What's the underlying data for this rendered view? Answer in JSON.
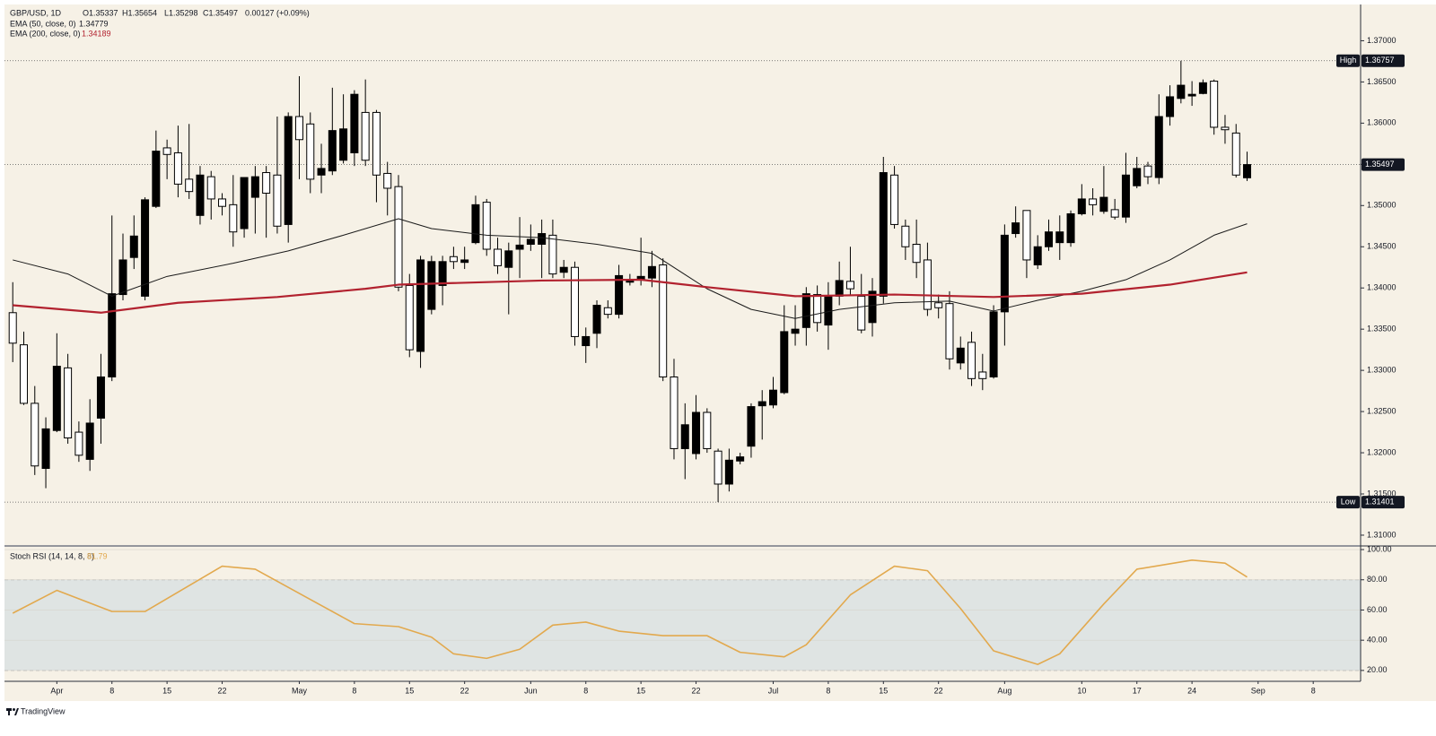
{
  "header": {
    "symbol": "GBP/USD, 1D",
    "open": "O1.35337",
    "high": "H1.35654",
    "low": "L1.35298",
    "close": "C1.35497",
    "change": "0.00127 (+0.09%)"
  },
  "brand": "TradingView",
  "chart_data": [
    {
      "type": "candlestick",
      "xlim": [
        -0.75,
        122.3
      ],
      "ylim": [
        1.3088,
        1.3744
      ],
      "grid": true,
      "up_color": "#000000",
      "down_color": "#ffffff",
      "yticks": [
        {
          "value": 1.31,
          "label": "1.31000"
        },
        {
          "value": 1.315,
          "label": "1.31500"
        },
        {
          "value": 1.32,
          "label": "1.32000"
        },
        {
          "value": 1.325,
          "label": "1.32500"
        },
        {
          "value": 1.33,
          "label": "1.33000"
        },
        {
          "value": 1.335,
          "label": "1.33500"
        },
        {
          "value": 1.34,
          "label": "1.34000"
        },
        {
          "value": 1.345,
          "label": "1.34500"
        },
        {
          "value": 1.35,
          "label": "1.35000"
        },
        {
          "value": 1.355,
          "label": "1.35500"
        },
        {
          "value": 1.36,
          "label": "1.36000"
        },
        {
          "value": 1.365,
          "label": "1.36500"
        },
        {
          "value": 1.37,
          "label": "1.37000"
        }
      ],
      "candles": {
        "open": [
          1.337,
          1.3331,
          1.326,
          1.3181,
          1.3227,
          1.3303,
          1.3225,
          1.3192,
          1.3242,
          1.3292,
          1.3392,
          1.3437,
          1.339,
          1.3499,
          1.357,
          1.3564,
          1.3532,
          1.3488,
          1.3535,
          1.3508,
          1.3501,
          1.3472,
          1.351,
          1.354,
          1.3537,
          1.3477,
          1.3608,
          1.3599,
          1.3537,
          1.3542,
          1.3555,
          1.3564,
          1.3613,
          1.3613,
          1.3539,
          1.3523,
          1.3403,
          1.3323,
          1.3374,
          1.3403,
          1.3438,
          1.3431,
          1.3455,
          1.3504,
          1.3447,
          1.3425,
          1.3447,
          1.3453,
          1.3453,
          1.3464,
          1.3419,
          1.3425,
          1.333,
          1.3345,
          1.3376,
          1.3368,
          1.3407,
          1.341,
          1.3412,
          1.3428,
          1.3292,
          1.3205,
          1.3199,
          1.3249,
          1.3202,
          1.3162,
          1.319,
          1.3208,
          1.3257,
          1.3258,
          1.3273,
          1.3345,
          1.3352,
          1.3392,
          1.3355,
          1.339,
          1.3408,
          1.339,
          1.3358,
          1.339,
          1.3537,
          1.3475,
          1.3453,
          1.3434,
          1.3382,
          1.3381,
          1.3309,
          1.3334,
          1.3298,
          1.3292,
          1.3371,
          1.3466,
          1.3494,
          1.3428,
          1.345,
          1.3455,
          1.3455,
          1.349,
          1.3508,
          1.3493,
          1.3495,
          1.3486,
          1.3524,
          1.3548,
          1.3534,
          1.3608,
          1.363,
          1.3633,
          1.3636,
          1.3651,
          1.3595,
          1.3588,
          1.35337
        ],
        "high": [
          1.3407,
          1.3347,
          1.3281,
          1.3243,
          1.3345,
          1.332,
          1.3238,
          1.3265,
          1.332,
          1.3488,
          1.3466,
          1.3488,
          1.351,
          1.3591,
          1.358,
          1.3597,
          1.3599,
          1.3548,
          1.3542,
          1.3515,
          1.3537,
          1.3534,
          1.3548,
          1.3548,
          1.3608,
          1.3613,
          1.3657,
          1.3613,
          1.3575,
          1.3643,
          1.3635,
          1.364,
          1.3653,
          1.3616,
          1.3553,
          1.3537,
          1.3417,
          1.3439,
          1.3439,
          1.3439,
          1.345,
          1.345,
          1.3512,
          1.3508,
          1.3461,
          1.3455,
          1.3486,
          1.3477,
          1.3483,
          1.3483,
          1.3434,
          1.3432,
          1.3352,
          1.3385,
          1.3385,
          1.3428,
          1.3417,
          1.3461,
          1.3445,
          1.3436,
          1.3314,
          1.326,
          1.327,
          1.3254,
          1.3205,
          1.3205,
          1.32,
          1.326,
          1.3276,
          1.3292,
          1.3379,
          1.3379,
          1.3401,
          1.3403,
          1.3407,
          1.3432,
          1.345,
          1.3417,
          1.3412,
          1.3559,
          1.3548,
          1.3483,
          1.3483,
          1.3455,
          1.3392,
          1.3396,
          1.3341,
          1.3347,
          1.332,
          1.3379,
          1.3477,
          1.3499,
          1.3494,
          1.3464,
          1.3483,
          1.3488,
          1.3494,
          1.3526,
          1.3521,
          1.3548,
          1.3508,
          1.3564,
          1.3559,
          1.3553,
          1.3635,
          1.3646,
          1.36757,
          1.3651,
          1.3653,
          1.3653,
          1.361,
          1.3599,
          1.35654
        ],
        "low": [
          1.331,
          1.3258,
          1.3173,
          1.3157,
          1.3225,
          1.3211,
          1.3189,
          1.3178,
          1.3211,
          1.3287,
          1.3385,
          1.3423,
          1.3385,
          1.3497,
          1.3532,
          1.351,
          1.3508,
          1.3477,
          1.3483,
          1.3488,
          1.345,
          1.3461,
          1.3466,
          1.3461,
          1.3466,
          1.3455,
          1.3532,
          1.3515,
          1.3515,
          1.3537,
          1.3551,
          1.3548,
          1.3548,
          1.3504,
          1.3488,
          1.3396,
          1.3316,
          1.3303,
          1.3368,
          1.3379,
          1.3423,
          1.3423,
          1.3453,
          1.3439,
          1.3417,
          1.3368,
          1.3412,
          1.3445,
          1.3412,
          1.3412,
          1.3412,
          1.333,
          1.3309,
          1.3327,
          1.3363,
          1.3363,
          1.3403,
          1.3403,
          1.3401,
          1.3287,
          1.3192,
          1.3168,
          1.3192,
          1.32,
          1.31401,
          1.3153,
          1.3186,
          1.3194,
          1.3216,
          1.3254,
          1.3271,
          1.333,
          1.333,
          1.3347,
          1.3325,
          1.3379,
          1.339,
          1.3345,
          1.3341,
          1.3381,
          1.3472,
          1.3434,
          1.3412,
          1.3366,
          1.3363,
          1.3301,
          1.3301,
          1.3281,
          1.3276,
          1.329,
          1.333,
          1.3461,
          1.3412,
          1.3423,
          1.3445,
          1.3434,
          1.345,
          1.3488,
          1.3488,
          1.349,
          1.3483,
          1.3479,
          1.3521,
          1.3526,
          1.3526,
          1.3597,
          1.3624,
          1.3621,
          1.3635,
          1.3586,
          1.3575,
          1.3534,
          1.35298
        ],
        "close": [
          1.3333,
          1.326,
          1.3184,
          1.3229,
          1.3305,
          1.3218,
          1.3197,
          1.3236,
          1.3292,
          1.3393,
          1.3434,
          1.3463,
          1.3507,
          1.3566,
          1.3562,
          1.3526,
          1.3517,
          1.3537,
          1.3508,
          1.3499,
          1.3468,
          1.3534,
          1.3535,
          1.3515,
          1.3475,
          1.3608,
          1.358,
          1.3532,
          1.3545,
          1.3591,
          1.3593,
          1.3635,
          1.3555,
          1.3537,
          1.3521,
          1.3401,
          1.3325,
          1.3434,
          1.3432,
          1.3432,
          1.3432,
          1.3434,
          1.3501,
          1.3447,
          1.3427,
          1.3445,
          1.3452,
          1.3459,
          1.3466,
          1.3417,
          1.3425,
          1.3341,
          1.3341,
          1.3379,
          1.3368,
          1.3415,
          1.341,
          1.3414,
          1.3426,
          1.3292,
          1.3205,
          1.3234,
          1.3249,
          1.3205,
          1.3162,
          1.3191,
          1.3195,
          1.3256,
          1.3262,
          1.3276,
          1.3347,
          1.335,
          1.3393,
          1.3358,
          1.339,
          1.3409,
          1.3399,
          1.3349,
          1.3396,
          1.354,
          1.3477,
          1.345,
          1.3431,
          1.3374,
          1.3376,
          1.3314,
          1.3327,
          1.329,
          1.329,
          1.3371,
          1.3464,
          1.3479,
          1.3434,
          1.345,
          1.3468,
          1.3468,
          1.349,
          1.3508,
          1.3501,
          1.351,
          1.3486,
          1.3537,
          1.3545,
          1.3535,
          1.3608,
          1.3632,
          1.3646,
          1.3635,
          1.3649,
          1.3595,
          1.3592,
          1.3537,
          1.35497
        ]
      },
      "series": [
        {
          "name": "EMA (50, close, 0)",
          "color": "#1a1a1a",
          "width": 1,
          "x": [
            0,
            5,
            9,
            14,
            20,
            25,
            30,
            35,
            38,
            43,
            48,
            53,
            58,
            63,
            67,
            71,
            75,
            80,
            85,
            89,
            93,
            97,
            101,
            105,
            109,
            112
          ],
          "values": [
            1.3434,
            1.3417,
            1.339,
            1.3414,
            1.343,
            1.3445,
            1.3464,
            1.3484,
            1.3472,
            1.3464,
            1.3461,
            1.3453,
            1.3442,
            1.3399,
            1.3374,
            1.3363,
            1.3374,
            1.3382,
            1.3384,
            1.3372,
            1.3385,
            1.3396,
            1.341,
            1.3434,
            1.3464,
            1.34779
          ]
        },
        {
          "name": "EMA (200, close, 0)",
          "color": "#b2222f",
          "width": 2.2,
          "x": [
            0,
            8,
            15,
            24,
            32,
            35,
            48,
            57,
            63,
            71,
            80,
            89,
            97,
            105,
            112
          ],
          "values": [
            1.3379,
            1.337,
            1.3382,
            1.3389,
            1.3399,
            1.3404,
            1.3409,
            1.341,
            1.3401,
            1.339,
            1.3392,
            1.3389,
            1.3393,
            1.3404,
            1.34189
          ]
        }
      ],
      "high_label": "High",
      "low_label": "Low"
    },
    {
      "type": "line",
      "xlim": [
        -0.75,
        122.3
      ],
      "ylim": [
        12.8,
        101.8
      ],
      "band": [
        20,
        80
      ],
      "band_color": "#dfe4e3",
      "yticks": [
        {
          "value": 20,
          "label": "20.00"
        },
        {
          "value": 40,
          "label": "40.00"
        },
        {
          "value": 60,
          "label": "60.00"
        },
        {
          "value": 80,
          "label": "80.00"
        },
        {
          "value": 100,
          "label": "100.00"
        }
      ],
      "xticks": [
        {
          "value": 4,
          "label": "Apr"
        },
        {
          "value": 9,
          "label": "8"
        },
        {
          "value": 14,
          "label": "15"
        },
        {
          "value": 19,
          "label": "22"
        },
        {
          "value": 26,
          "label": "May"
        },
        {
          "value": 31,
          "label": "8"
        },
        {
          "value": 36,
          "label": "15"
        },
        {
          "value": 41,
          "label": "22"
        },
        {
          "value": 47,
          "label": "Jun"
        },
        {
          "value": 52,
          "label": "8"
        },
        {
          "value": 57,
          "label": "15"
        },
        {
          "value": 62,
          "label": "22"
        },
        {
          "value": 69,
          "label": "Jul"
        },
        {
          "value": 74,
          "label": "8"
        },
        {
          "value": 79,
          "label": "15"
        },
        {
          "value": 84,
          "label": "22"
        },
        {
          "value": 90,
          "label": "Aug"
        },
        {
          "value": 97,
          "label": "10"
        },
        {
          "value": 102,
          "label": "17"
        },
        {
          "value": 107,
          "label": "24"
        },
        {
          "value": 113,
          "label": "Sep"
        },
        {
          "value": 118,
          "label": "8"
        }
      ],
      "series": [
        {
          "name": "Stoch RSI (14, 14, 8, 8)",
          "color": "#e2a94e",
          "x": [
            0,
            4,
            9,
            12,
            19,
            22,
            27,
            31,
            35,
            38,
            40,
            43,
            46,
            49,
            52,
            55,
            59,
            63,
            66,
            70,
            72,
            76,
            80,
            83,
            86,
            89,
            93,
            95,
            99,
            102,
            107,
            110,
            112
          ],
          "values": [
            57.9,
            73,
            59,
            59,
            89,
            87,
            67,
            51,
            49,
            42,
            31,
            28,
            34,
            50,
            52,
            46,
            43,
            43,
            32,
            29,
            37,
            70,
            89,
            86,
            61,
            33,
            24,
            31,
            64,
            87,
            93,
            91,
            81.79
          ]
        }
      ]
    }
  ]
}
